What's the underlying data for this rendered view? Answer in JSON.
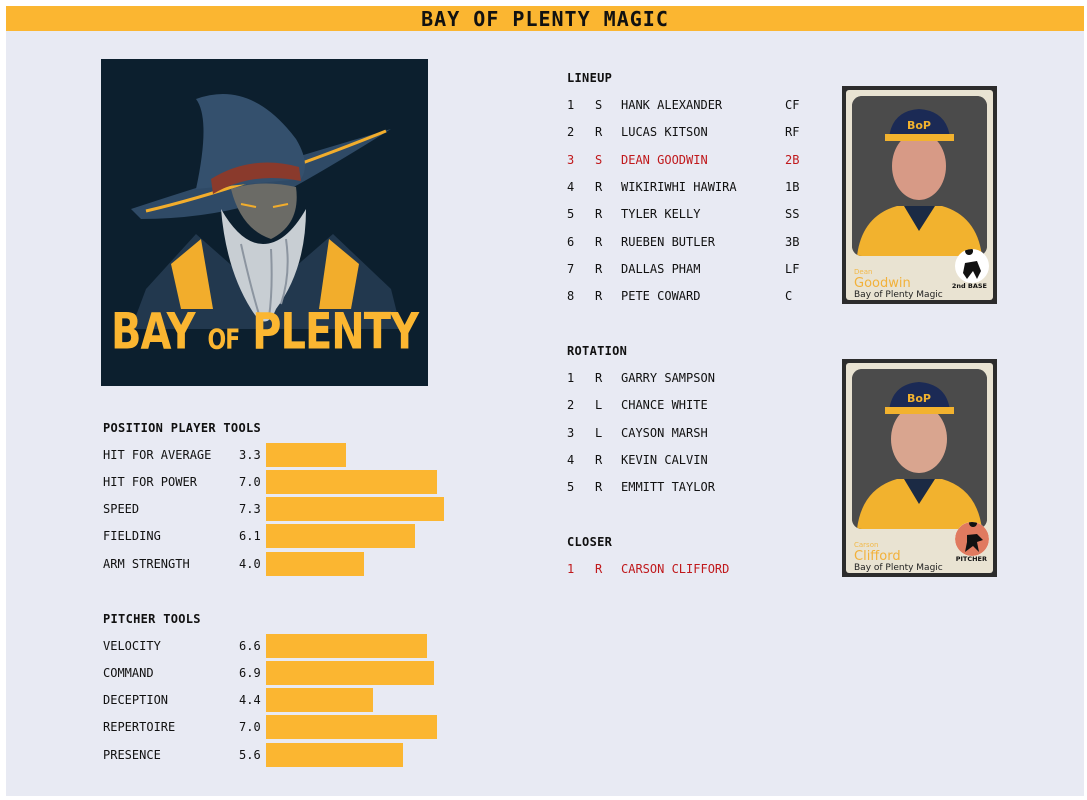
{
  "header": {
    "title": "BAY OF PLENTY MAGIC"
  },
  "logo": {
    "text_line1": "BAY",
    "text_of": "OF",
    "text_line2": "PLENTY"
  },
  "position_tools": {
    "title": "POSITION PLAYER TOOLS",
    "items": [
      {
        "label": "HIT FOR AVERAGE",
        "value": "3.3"
      },
      {
        "label": "HIT FOR POWER",
        "value": "7.0"
      },
      {
        "label": "SPEED",
        "value": "7.3"
      },
      {
        "label": "FIELDING",
        "value": "6.1"
      },
      {
        "label": "ARM STRENGTH",
        "value": "4.0"
      }
    ]
  },
  "pitcher_tools": {
    "title": "PITCHER TOOLS",
    "items": [
      {
        "label": "VELOCITY",
        "value": "6.6"
      },
      {
        "label": "COMMAND",
        "value": "6.9"
      },
      {
        "label": "DECEPTION",
        "value": "4.4"
      },
      {
        "label": "REPERTOIRE",
        "value": "7.0"
      },
      {
        "label": "PRESENCE",
        "value": "5.6"
      }
    ]
  },
  "lineup": {
    "title": "LINEUP",
    "rows": [
      {
        "num": "1",
        "hand": "S",
        "name": "HANK ALEXANDER",
        "pos": "CF"
      },
      {
        "num": "2",
        "hand": "R",
        "name": "LUCAS KITSON",
        "pos": "RF"
      },
      {
        "num": "3",
        "hand": "S",
        "name": "DEAN GOODWIN",
        "pos": "2B"
      },
      {
        "num": "4",
        "hand": "R",
        "name": "WIKIRIWHI HAWIRA",
        "pos": "1B"
      },
      {
        "num": "5",
        "hand": "R",
        "name": "TYLER KELLY",
        "pos": "SS"
      },
      {
        "num": "6",
        "hand": "R",
        "name": "RUEBEN BUTLER",
        "pos": "3B"
      },
      {
        "num": "7",
        "hand": "R",
        "name": "DALLAS PHAM",
        "pos": "LF"
      },
      {
        "num": "8",
        "hand": "R",
        "name": "PETE COWARD",
        "pos": "C"
      }
    ]
  },
  "rotation": {
    "title": "ROTATION",
    "rows": [
      {
        "num": "1",
        "hand": "R",
        "name": "GARRY SAMPSON"
      },
      {
        "num": "2",
        "hand": "L",
        "name": "CHANCE WHITE"
      },
      {
        "num": "3",
        "hand": "L",
        "name": "CAYSON MARSH"
      },
      {
        "num": "4",
        "hand": "R",
        "name": "KEVIN CALVIN"
      },
      {
        "num": "5",
        "hand": "R",
        "name": "EMMITT TAYLOR"
      }
    ]
  },
  "closer": {
    "title": "CLOSER",
    "rows": [
      {
        "num": "1",
        "hand": "R",
        "name": "CARSON CLIFFORD"
      }
    ]
  },
  "cards": {
    "batter": {
      "first": "Dean",
      "last": "Goodwin",
      "team": "Bay of Plenty Magic",
      "position": "2nd BASE",
      "cap_logo": "BoP"
    },
    "pitcher": {
      "first": "Carson",
      "last": "Clifford",
      "team": "Bay of Plenty Magic",
      "position": "PITCHER",
      "cap_logo": "BoP"
    }
  },
  "colors": {
    "accent": "#fbb631",
    "highlight": "#c0191c",
    "panel": "#e8eaf3",
    "logo_bg": "#0c1f2e"
  },
  "icons": {
    "logo": "wizard-logo",
    "batter_badge": "fielder-silhouette-icon",
    "pitcher_badge": "pitcher-silhouette-icon"
  }
}
